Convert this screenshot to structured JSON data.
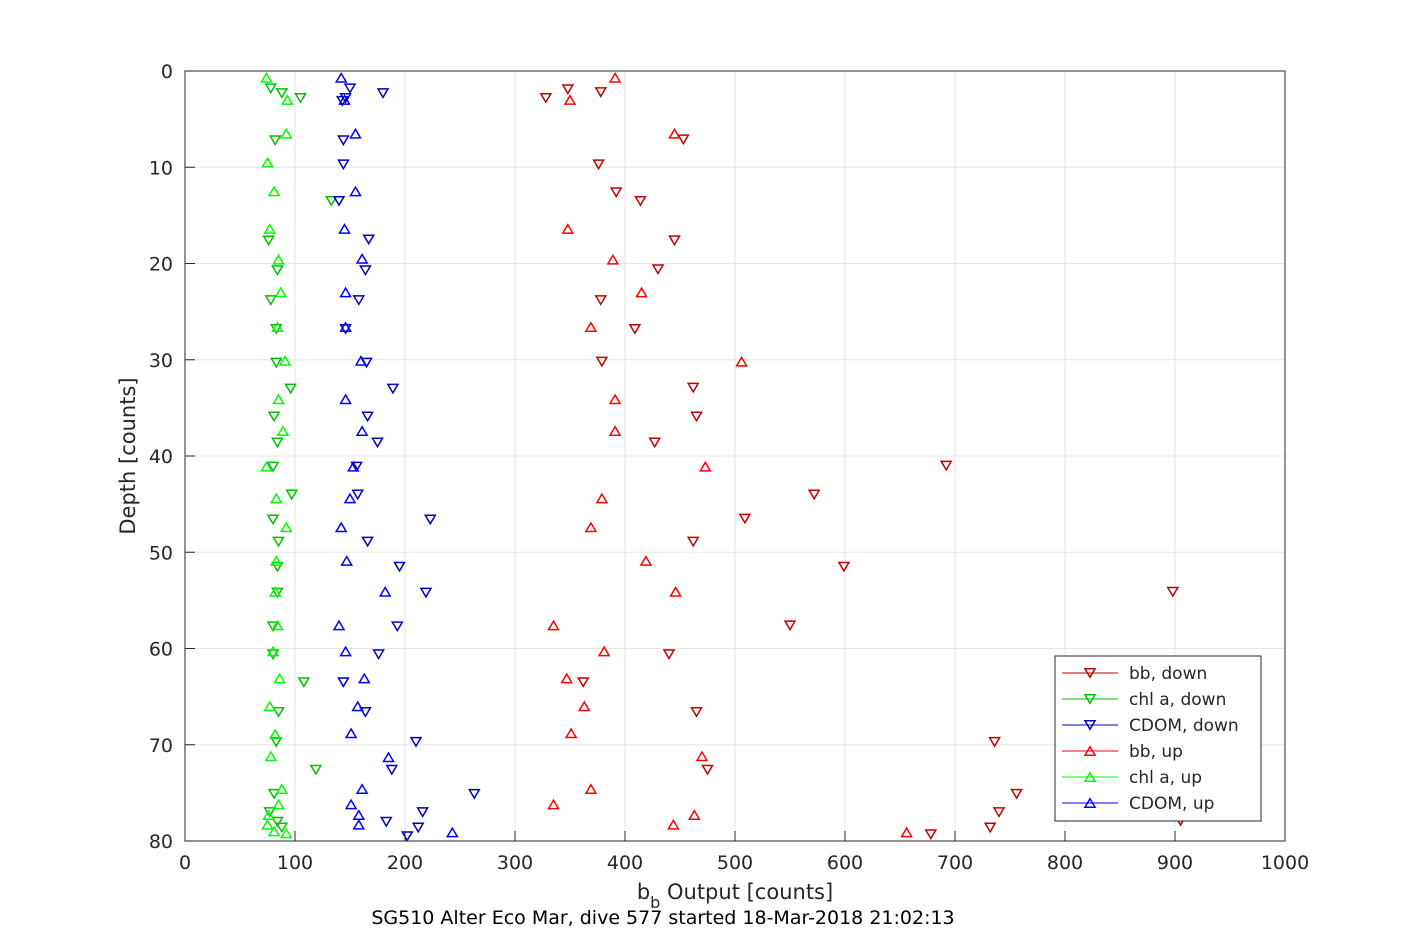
{
  "chart_data": {
    "type": "scatter",
    "title": "",
    "caption": "SG510 Alter Eco Mar, dive 577 started 18-Mar-2018 21:02:13",
    "xlabel": {
      "main": "b",
      "sub": "b",
      "rest": " Output [counts]"
    },
    "ylabel": "Depth [counts]",
    "xlim": [
      0,
      1000
    ],
    "ylim": [
      0,
      80
    ],
    "y_reversed": true,
    "grid": true,
    "legend_position": "bottom-right",
    "x_ticks": [
      "0",
      "100",
      "200",
      "300",
      "400",
      "500",
      "600",
      "700",
      "800",
      "900",
      "1000"
    ],
    "y_ticks": [
      "0",
      "10",
      "20",
      "30",
      "40",
      "50",
      "60",
      "70",
      "80"
    ],
    "colors": {
      "red": "#ff0000",
      "darkred": "#c00000",
      "green": "#00ff00",
      "darkgreen": "#00c000",
      "blue": "#0000ff",
      "darkblue": "#0000c0"
    },
    "series": [
      {
        "name": "bb, down",
        "marker": "down",
        "color": "#c00000",
        "points": [
          [
            348,
            1.9
          ],
          [
            378,
            2.2
          ],
          [
            328,
            2.8
          ],
          [
            453,
            7.1
          ],
          [
            376,
            9.7
          ],
          [
            392,
            12.6
          ],
          [
            414,
            13.5
          ],
          [
            445,
            17.6
          ],
          [
            430,
            20.6
          ],
          [
            378,
            23.8
          ],
          [
            409,
            26.8
          ],
          [
            379,
            30.2
          ],
          [
            462,
            32.9
          ],
          [
            465,
            35.9
          ],
          [
            427,
            38.6
          ],
          [
            692,
            41.0
          ],
          [
            572,
            44.0
          ],
          [
            509,
            46.5
          ],
          [
            462,
            48.9
          ],
          [
            599,
            51.5
          ],
          [
            898,
            54.1
          ],
          [
            550,
            57.6
          ],
          [
            440,
            60.6
          ],
          [
            362,
            63.5
          ],
          [
            465,
            66.6
          ],
          [
            736,
            69.7
          ],
          [
            475,
            72.6
          ],
          [
            756,
            75.1
          ],
          [
            740,
            77.0
          ],
          [
            732,
            78.6
          ],
          [
            678,
            79.3
          ],
          [
            905,
            77.9
          ]
        ]
      },
      {
        "name": "chl a, down",
        "marker": "down",
        "color": "#00c000",
        "points": [
          [
            78,
            1.8
          ],
          [
            88,
            2.3
          ],
          [
            105,
            2.8
          ],
          [
            82,
            7.2
          ],
          [
            133,
            13.5
          ],
          [
            76,
            17.6
          ],
          [
            84,
            20.7
          ],
          [
            78,
            23.8
          ],
          [
            83,
            26.8
          ],
          [
            83,
            30.3
          ],
          [
            96,
            33.0
          ],
          [
            81,
            35.9
          ],
          [
            84,
            38.6
          ],
          [
            80,
            41.1
          ],
          [
            97,
            44.0
          ],
          [
            80,
            46.6
          ],
          [
            85,
            48.9
          ],
          [
            84,
            51.5
          ],
          [
            84,
            54.2
          ],
          [
            80,
            57.7
          ],
          [
            80,
            60.6
          ],
          [
            108,
            63.5
          ],
          [
            85,
            66.6
          ],
          [
            83,
            69.7
          ],
          [
            119,
            72.6
          ],
          [
            81,
            75.1
          ],
          [
            77,
            77.0
          ],
          [
            88,
            78.6
          ],
          [
            84,
            78.0
          ]
        ]
      },
      {
        "name": "CDOM, down",
        "marker": "down",
        "color": "#0000c0",
        "points": [
          [
            150,
            1.8
          ],
          [
            180,
            2.3
          ],
          [
            146,
            2.8
          ],
          [
            143,
            3.1
          ],
          [
            144,
            7.2
          ],
          [
            144,
            9.7
          ],
          [
            140,
            13.5
          ],
          [
            167,
            17.5
          ],
          [
            164,
            20.7
          ],
          [
            158,
            23.8
          ],
          [
            146,
            26.8
          ],
          [
            165,
            30.3
          ],
          [
            189,
            33.0
          ],
          [
            166,
            35.9
          ],
          [
            175,
            38.6
          ],
          [
            156,
            41.1
          ],
          [
            157,
            44.0
          ],
          [
            223,
            46.6
          ],
          [
            166,
            48.9
          ],
          [
            195,
            51.5
          ],
          [
            219,
            54.2
          ],
          [
            193,
            57.7
          ],
          [
            176,
            60.6
          ],
          [
            144,
            63.5
          ],
          [
            164,
            66.6
          ],
          [
            210,
            69.7
          ],
          [
            188,
            72.6
          ],
          [
            263,
            75.1
          ],
          [
            216,
            77.0
          ],
          [
            183,
            78.0
          ],
          [
            212,
            78.6
          ],
          [
            202,
            79.5
          ]
        ]
      },
      {
        "name": "bb, up",
        "marker": "up",
        "color": "#ff0000",
        "points": [
          [
            391,
            0.7
          ],
          [
            350,
            3.0
          ],
          [
            445,
            6.5
          ],
          [
            348,
            16.4
          ],
          [
            389,
            19.6
          ],
          [
            415,
            23.0
          ],
          [
            369,
            26.6
          ],
          [
            506,
            30.2
          ],
          [
            391,
            34.1
          ],
          [
            391,
            37.4
          ],
          [
            473,
            41.1
          ],
          [
            379,
            44.4
          ],
          [
            369,
            47.4
          ],
          [
            419,
            50.9
          ],
          [
            446,
            54.1
          ],
          [
            335,
            57.6
          ],
          [
            381,
            60.3
          ],
          [
            347,
            63.1
          ],
          [
            363,
            66.0
          ],
          [
            351,
            68.8
          ],
          [
            470,
            71.2
          ],
          [
            369,
            74.6
          ],
          [
            335,
            76.2
          ],
          [
            463,
            77.3
          ],
          [
            444,
            78.3
          ],
          [
            656,
            79.1
          ]
        ]
      },
      {
        "name": "chl a, up",
        "marker": "up",
        "color": "#00ff00",
        "points": [
          [
            74,
            0.7
          ],
          [
            93,
            3.0
          ],
          [
            92,
            6.5
          ],
          [
            75,
            9.5
          ],
          [
            81,
            12.5
          ],
          [
            77,
            16.4
          ],
          [
            85,
            19.6
          ],
          [
            87,
            23.0
          ],
          [
            84,
            26.6
          ],
          [
            91,
            30.1
          ],
          [
            85,
            34.1
          ],
          [
            89,
            37.4
          ],
          [
            74,
            41.1
          ],
          [
            83,
            44.4
          ],
          [
            92,
            47.4
          ],
          [
            83,
            50.9
          ],
          [
            82,
            54.1
          ],
          [
            84,
            57.6
          ],
          [
            80,
            60.3
          ],
          [
            86,
            63.1
          ],
          [
            77,
            66.0
          ],
          [
            82,
            68.9
          ],
          [
            78,
            71.2
          ],
          [
            88,
            74.6
          ],
          [
            85,
            76.2
          ],
          [
            76,
            77.3
          ],
          [
            75,
            78.3
          ],
          [
            81,
            79.0
          ],
          [
            92,
            79.2
          ]
        ]
      },
      {
        "name": "CDOM, up",
        "marker": "up",
        "color": "#0000ff",
        "points": [
          [
            142,
            0.7
          ],
          [
            145,
            3.0
          ],
          [
            155,
            6.5
          ],
          [
            145,
            16.4
          ],
          [
            155,
            12.5
          ],
          [
            161,
            19.5
          ],
          [
            146,
            23.0
          ],
          [
            146,
            26.6
          ],
          [
            160,
            30.1
          ],
          [
            146,
            34.1
          ],
          [
            161,
            37.4
          ],
          [
            153,
            41.1
          ],
          [
            150,
            44.4
          ],
          [
            142,
            47.4
          ],
          [
            147,
            50.9
          ],
          [
            182,
            54.1
          ],
          [
            140,
            57.6
          ],
          [
            146,
            60.3
          ],
          [
            163,
            63.1
          ],
          [
            157,
            66.0
          ],
          [
            151,
            68.8
          ],
          [
            185,
            71.3
          ],
          [
            161,
            74.6
          ],
          [
            151,
            76.2
          ],
          [
            158,
            77.3
          ],
          [
            158,
            78.3
          ],
          [
            243,
            79.1
          ]
        ]
      }
    ]
  }
}
